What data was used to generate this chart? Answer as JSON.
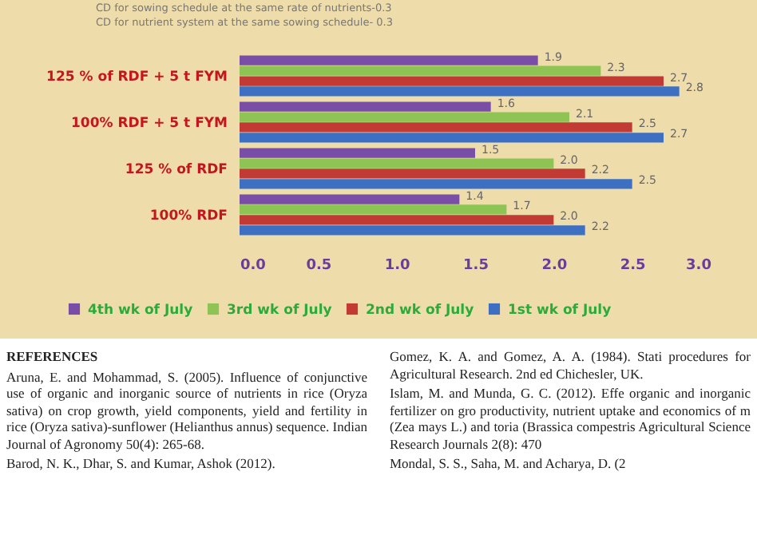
{
  "chart_data": {
    "type": "bar",
    "orientation": "horizontal",
    "categories": [
      "125 % of RDF + 5 t FYM",
      "100% RDF + 5 t FYM",
      "125 % of RDF",
      "100% RDF"
    ],
    "series": [
      {
        "name": "4th wk of July",
        "color": "#7a4ea6",
        "values": [
          1.9,
          1.6,
          1.5,
          1.4
        ],
        "value_labels": [
          "1.9",
          "1.6",
          "1.5",
          "1.4"
        ]
      },
      {
        "name": "3rd wk of July",
        "color": "#8dc453",
        "values": [
          2.3,
          2.1,
          2.0,
          1.7
        ],
        "value_labels": [
          "2.3",
          "2.1",
          "2.0",
          "1.7"
        ]
      },
      {
        "name": "2nd wk of July",
        "color": "#c23a34",
        "values": [
          2.7,
          2.5,
          2.2,
          2.0
        ],
        "value_labels": [
          "2.7",
          "2.5",
          "2.2",
          "2.0"
        ]
      },
      {
        "name": "1st wk of July",
        "color": "#3d70c2",
        "values": [
          2.8,
          2.7,
          2.5,
          2.2
        ],
        "value_labels": [
          "2.8",
          "2.7",
          "2.5",
          "2.2"
        ]
      }
    ],
    "xlim": [
      0,
      3
    ],
    "xticks": [
      {
        "value": 0,
        "label": "0.0"
      },
      0.5,
      {
        "value": 1,
        "label": "1.0"
      },
      1.5,
      {
        "value": 2,
        "label": "2.0"
      },
      2.5,
      {
        "value": 3,
        "label": "3.0"
      }
    ],
    "grid": false,
    "legend": "bottom",
    "annotations": [
      "CD for sowing schedule at the same rate of nutrients-0.3",
      "CD for nutrient system at the same sowing schedule- 0.3",
      "REFERENCES",
      "Aruna, E. and Mohammad, S. (2005). Influence of conjunctive use of organic and inorganic source of nutrients in rice (Oryza sativa) on crop growth, yield components, yield and fertility in rice (Oryza sativa)-sunflower (Helianthus annus) sequence. Indian Journal of Agronomy 50(4): 265-68.",
      "Barod, N. K., Dhar, S. and Kumar, Ashok (2012).",
      "Gomez, K. A. and Gomez, A. A. (1984). Stati procedures for Agricultural Research. 2nd ed Chichesler, UK.",
      "Islam, M. and Munda, G. C. (2012). Effe organic and inorganic fertilizer on gro productivity, nutrient uptake and economics of m (Zea mays L.) and toria (Brassica compestris Agricultural Science Research Journals 2(8): 470",
      "Mondal, S. S., Saha, M. and Acharya, D. (2"
    ]
  }
}
